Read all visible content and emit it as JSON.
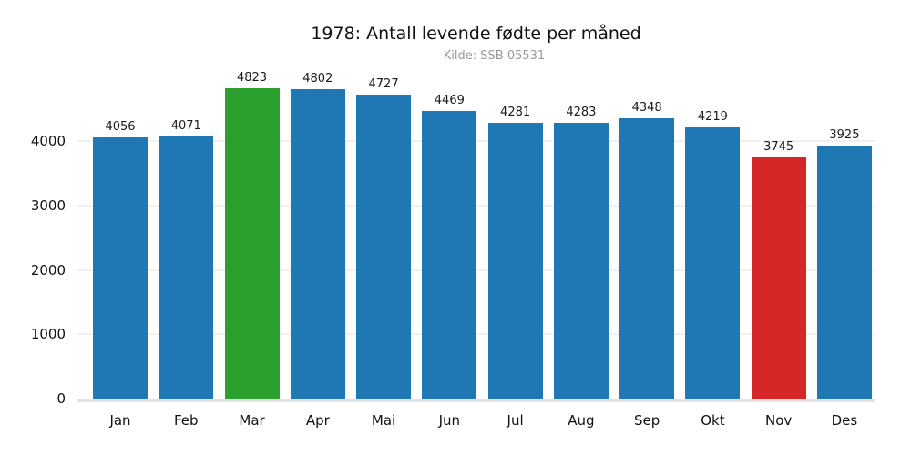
{
  "title": "1978: Antall levende fødte per måned",
  "subtitle": "Kilde: SSB 05531",
  "chart_data": {
    "type": "bar",
    "title": "1978: Antall levende fødte per måned",
    "subtitle": "Kilde: SSB 05531",
    "categories": [
      "Jan",
      "Feb",
      "Mar",
      "Apr",
      "Mai",
      "Jun",
      "Jul",
      "Aug",
      "Sep",
      "Okt",
      "Nov",
      "Des"
    ],
    "values": [
      4056,
      4071,
      4823,
      4802,
      4727,
      4469,
      4281,
      4283,
      4348,
      4219,
      3745,
      3925
    ],
    "xlabel": "",
    "ylabel": "",
    "ylim": [
      0,
      4900
    ],
    "yticks": [
      0,
      1000,
      2000,
      3000,
      4000
    ],
    "grid": true,
    "legend": false,
    "value_labels_shown": true,
    "colors": {
      "bar_default": "#1f77b4",
      "bar_max_highlight": "#2ca02c",
      "bar_min_highlight": "#d62728",
      "gridline": "#f0f0f0",
      "axis_line": "#e2e2e2",
      "title_text": "#111111",
      "subtitle_text": "#999999",
      "label_text": "#1a1a1a"
    },
    "highlight_max_month": "Mar",
    "highlight_min_month": "Nov"
  }
}
